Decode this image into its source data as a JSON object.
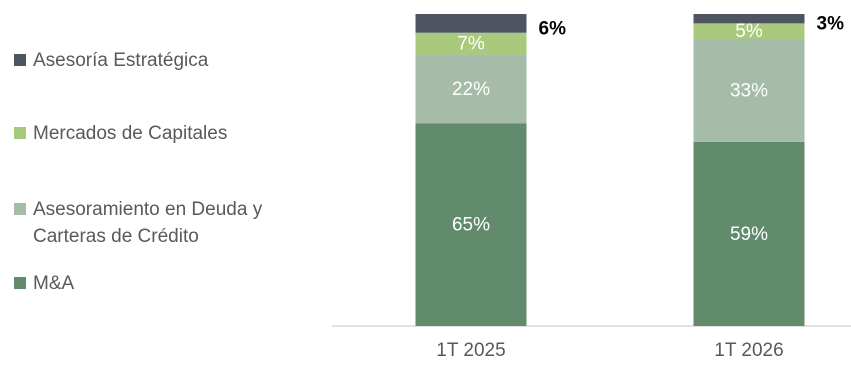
{
  "chart_data": {
    "type": "bar",
    "stacked": true,
    "categories": [
      "1T 2025",
      "1T 2026"
    ],
    "series": [
      {
        "name": "M&A",
        "values": [
          65,
          59
        ],
        "labels": [
          "65%",
          "59%"
        ],
        "color": "#628b6c"
      },
      {
        "name": "Asesoramiento en Deuda y Carteras de Crédito",
        "values": [
          22,
          33
        ],
        "labels": [
          "22%",
          "33%"
        ],
        "color": "#a5bca9"
      },
      {
        "name": "Mercados de Capitales",
        "values": [
          7,
          5
        ],
        "labels": [
          "7%",
          "5%"
        ],
        "color": "#a9c97c"
      },
      {
        "name": "Asesoría Estratégica",
        "values": [
          6,
          3
        ],
        "labels": [
          "6%",
          "3%"
        ],
        "color": "#4e5561"
      }
    ],
    "ylim": [
      0,
      100
    ],
    "legend_position": "left",
    "grid": false
  }
}
